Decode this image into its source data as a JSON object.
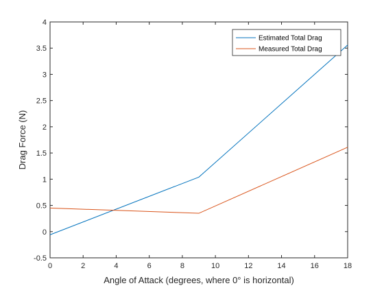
{
  "chart_data": {
    "type": "line",
    "title": "",
    "xlabel": "Angle of Attack (degrees, where 0° is horizontal)",
    "ylabel": "Drag Force (N)",
    "xlim": [
      0,
      18
    ],
    "ylim": [
      -0.5,
      4
    ],
    "xticks": [
      0,
      2,
      4,
      6,
      8,
      10,
      12,
      14,
      16,
      18
    ],
    "yticks": [
      -0.5,
      0,
      0.5,
      1,
      1.5,
      2,
      2.5,
      3,
      3.5,
      4
    ],
    "xtick_labels": [
      "0",
      "2",
      "4",
      "6",
      "8",
      "10",
      "12",
      "14",
      "16",
      "18"
    ],
    "ytick_labels": [
      "-0.5",
      "0",
      "0.5",
      "1",
      "1.5",
      "2",
      "2.5",
      "3",
      "3.5",
      "4"
    ],
    "grid": false,
    "legend_position": "top-right",
    "series": [
      {
        "name": "Estimated Total Drag",
        "color": "#0072BD",
        "x": [
          0,
          9,
          18
        ],
        "y": [
          -0.06,
          1.04,
          3.56
        ]
      },
      {
        "name": "Measured Total Drag",
        "color": "#D95319",
        "x": [
          0,
          9,
          18
        ],
        "y": [
          0.45,
          0.35,
          1.61
        ]
      }
    ]
  }
}
